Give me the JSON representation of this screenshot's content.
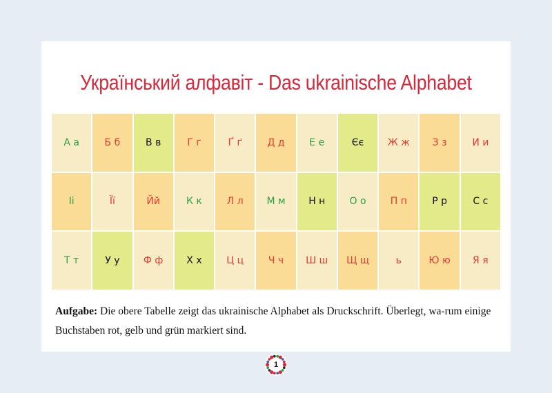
{
  "title": "Український алфавіт - Das ukrainische Alphabet",
  "alphabet": [
    {
      "text": "А а",
      "color": "#2aa040",
      "bg": "cream"
    },
    {
      "text": "Б б",
      "color": "#e63a32",
      "bg": "orange"
    },
    {
      "text": "В в",
      "color": "#111111",
      "bg": "lime"
    },
    {
      "text": "Г г",
      "color": "#e63a32",
      "bg": "orange"
    },
    {
      "text": "Ґ ґ",
      "color": "#e63a32",
      "bg": "cream"
    },
    {
      "text": "Д д",
      "color": "#e63a32",
      "bg": "orange"
    },
    {
      "text": "Е е",
      "color": "#2aa040",
      "bg": "cream"
    },
    {
      "text": "Єє",
      "color": "#111111",
      "bg": "lime"
    },
    {
      "text": "Ж ж",
      "color": "#e63a32",
      "bg": "cream"
    },
    {
      "text": "З з",
      "color": "#e63a32",
      "bg": "orange"
    },
    {
      "text": "И и",
      "color": "#e63a32",
      "bg": "cream"
    },
    {
      "text": "Іі",
      "color": "#2aa040",
      "bg": "orange"
    },
    {
      "text": "Її",
      "color": "#e63a32",
      "bg": "cream"
    },
    {
      "text": "Йй",
      "color": "#e63a32",
      "bg": "orange"
    },
    {
      "text": "К к",
      "color": "#2aa040",
      "bg": "cream"
    },
    {
      "text": "Л л",
      "color": "#e63a32",
      "bg": "orange"
    },
    {
      "text": "М м",
      "color": "#2aa040",
      "bg": "cream"
    },
    {
      "text": "Н н",
      "color": "#111111",
      "bg": "lime"
    },
    {
      "text": "О о",
      "color": "#2aa040",
      "bg": "cream"
    },
    {
      "text": "П п",
      "color": "#e63a32",
      "bg": "orange"
    },
    {
      "text": "Р р",
      "color": "#111111",
      "bg": "lime"
    },
    {
      "text": "С с",
      "color": "#111111",
      "bg": "lime"
    },
    {
      "text": "Т т",
      "color": "#2aa040",
      "bg": "cream"
    },
    {
      "text": "У у",
      "color": "#111111",
      "bg": "lime"
    },
    {
      "text": "Ф ф",
      "color": "#e63a32",
      "bg": "cream"
    },
    {
      "text": "Х х",
      "color": "#111111",
      "bg": "lime"
    },
    {
      "text": "Ц ц",
      "color": "#e63a32",
      "bg": "cream"
    },
    {
      "text": "Ч ч",
      "color": "#e63a32",
      "bg": "orange"
    },
    {
      "text": "Ш ш",
      "color": "#e63a32",
      "bg": "cream"
    },
    {
      "text": "Щ щ",
      "color": "#e63a32",
      "bg": "orange"
    },
    {
      "text": "ь",
      "color": "#e63a32",
      "bg": "cream"
    },
    {
      "text": "Ю ю",
      "color": "#e63a32",
      "bg": "orange"
    },
    {
      "text": "Я я",
      "color": "#e63a32",
      "bg": "cream"
    }
  ],
  "colors": {
    "cream": "#f8ecc6",
    "orange": "#fbdc96",
    "lime": "#e3ea89",
    "title": "#d8283c",
    "page_background": "#e6edf4"
  },
  "task": {
    "label": "Aufgabe:",
    "text": " Die obere Tabelle zeigt das ukrainische Alphabet als Druckschrift. Überlegt, wa-rum einige Buchstaben rot, gelb und grün markiert sind."
  },
  "page_number": "1",
  "badge_icon": "floral-wreath-icon"
}
